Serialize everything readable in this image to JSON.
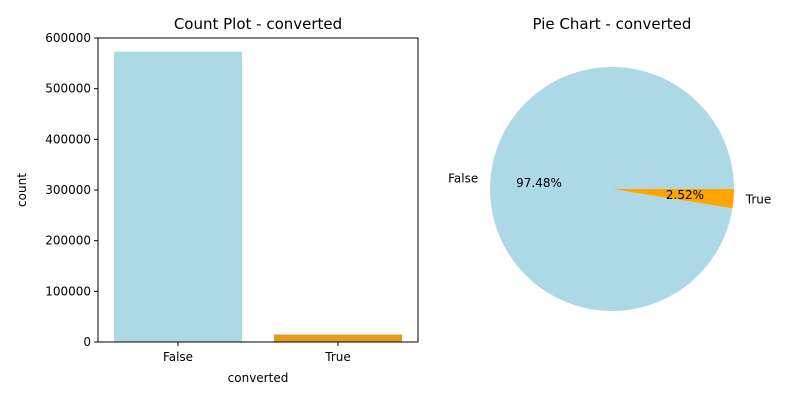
{
  "colors": {
    "false_color": "#add8e6",
    "true_color": "#ffa500",
    "bar_true_color": "#e69a1f",
    "axis": "#000000"
  },
  "chart_data": [
    {
      "type": "bar",
      "title": "Count Plot - converted",
      "xlabel": "converted",
      "ylabel": "count",
      "categories": [
        "False",
        "True"
      ],
      "values": [
        573000,
        14800
      ],
      "ylim": [
        0,
        600000
      ],
      "yticks": [
        "0",
        "100000",
        "200000",
        "300000",
        "400000",
        "500000",
        "600000"
      ],
      "ytick_values": [
        0,
        100000,
        200000,
        300000,
        400000,
        500000,
        600000
      ],
      "grid": false
    },
    {
      "type": "pie",
      "title": "Pie Chart - converted",
      "labels": [
        "False",
        "True"
      ],
      "values": [
        97.48,
        2.52
      ],
      "pct_labels": [
        "97.48%",
        "2.52%"
      ]
    }
  ]
}
